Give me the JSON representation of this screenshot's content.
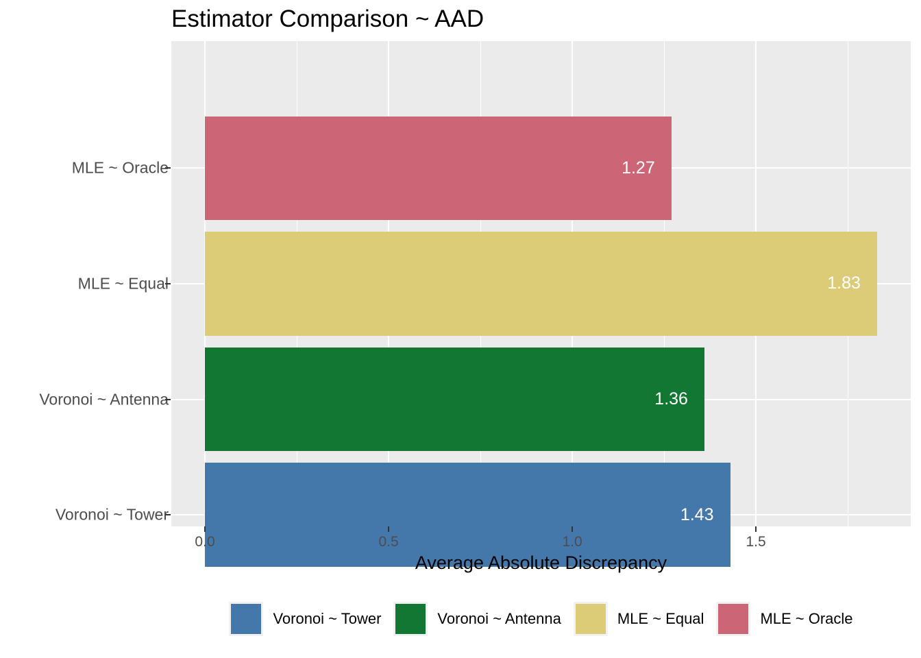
{
  "title": "Estimator Comparison ~ AAD",
  "chart_data": {
    "type": "bar",
    "orientation": "horizontal",
    "title": "Estimator Comparison ~ AAD",
    "xlabel": "Average Absolute Discrepancy",
    "ylabel": "",
    "categories_top_to_bottom": [
      "MLE ~ Oracle",
      "MLE ~ Equal",
      "Voronoi ~ Antenna",
      "Voronoi ~ Tower"
    ],
    "series": [
      {
        "name": "MLE ~ Oracle",
        "value": 1.27,
        "value_label": "1.27",
        "color": "#CC6677"
      },
      {
        "name": "MLE ~ Equal",
        "value": 1.83,
        "value_label": "1.83",
        "color": "#DDCC77"
      },
      {
        "name": "Voronoi ~ Antenna",
        "value": 1.36,
        "value_label": "1.36",
        "color": "#117733"
      },
      {
        "name": "Voronoi ~ Tower",
        "value": 1.43,
        "value_label": "1.43",
        "color": "#4477AA"
      }
    ],
    "x_ticks": [
      {
        "value": 0.0,
        "label": "0.0"
      },
      {
        "value": 0.5,
        "label": "0.5"
      },
      {
        "value": 1.0,
        "label": "1.0"
      },
      {
        "value": 1.5,
        "label": "1.5"
      }
    ],
    "x_minor_ticks": [
      0.25,
      0.75,
      1.25,
      1.75
    ],
    "xlim": [
      -0.0915,
      1.9215
    ],
    "grid": true,
    "panel_background": "#EBEBEB",
    "grid_color": "#FFFFFF",
    "bar_label_color": "#FFFFFF",
    "axis_text_color": "#4D4D4D",
    "legend": {
      "position": "bottom",
      "entries": [
        {
          "label": "Voronoi ~ Tower",
          "color": "#4477AA"
        },
        {
          "label": "Voronoi ~ Antenna",
          "color": "#117733"
        },
        {
          "label": "MLE ~ Equal",
          "color": "#DDCC77"
        },
        {
          "label": "MLE ~ Oracle",
          "color": "#CC6677"
        }
      ]
    }
  }
}
